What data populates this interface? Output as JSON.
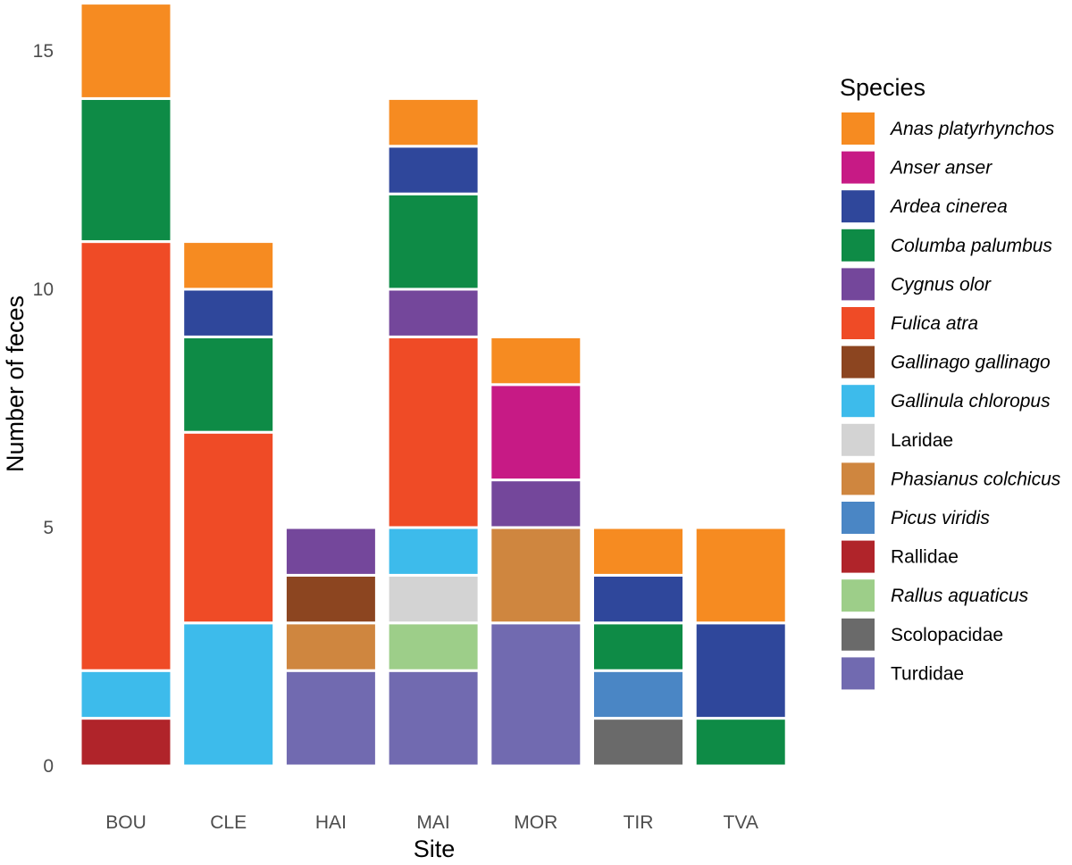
{
  "chart_data": {
    "type": "bar",
    "stacked": true,
    "xlabel": "Site",
    "ylabel": "Number of feces",
    "ylim": [
      0,
      16
    ],
    "yticks": [
      0,
      5,
      10,
      15
    ],
    "grid": false,
    "legend": {
      "title": "Species",
      "placement": "right"
    },
    "categories": [
      "BOU",
      "CLE",
      "HAI",
      "MAI",
      "MOR",
      "TIR",
      "TVA"
    ],
    "series": [
      {
        "name": "Anas platyrhynchos",
        "italic": true,
        "color": "#F68B21",
        "values": [
          2,
          1,
          0,
          1,
          1,
          1,
          2
        ]
      },
      {
        "name": "Anser anser",
        "italic": true,
        "color": "#C71A85",
        "values": [
          0,
          0,
          0,
          0,
          2,
          0,
          0
        ]
      },
      {
        "name": "Ardea cinerea",
        "italic": true,
        "color": "#2F479B",
        "values": [
          0,
          1,
          0,
          1,
          0,
          1,
          2
        ]
      },
      {
        "name": "Columba palumbus",
        "italic": true,
        "color": "#0E8B46",
        "values": [
          3,
          2,
          0,
          2,
          0,
          1,
          1
        ]
      },
      {
        "name": "Cygnus olor",
        "italic": true,
        "color": "#74479B",
        "values": [
          0,
          0,
          1,
          1,
          1,
          0,
          0
        ]
      },
      {
        "name": "Fulica atra",
        "italic": true,
        "color": "#EF4B26",
        "values": [
          9,
          4,
          0,
          4,
          0,
          0,
          0
        ]
      },
      {
        "name": "Gallinago gallinago",
        "italic": true,
        "color": "#8C4520",
        "values": [
          0,
          0,
          1,
          0,
          0,
          0,
          0
        ]
      },
      {
        "name": "Gallinula chloropus",
        "italic": true,
        "color": "#3DBBEB",
        "values": [
          1,
          3,
          0,
          1,
          0,
          0,
          0
        ]
      },
      {
        "name": "Laridae",
        "italic": false,
        "color": "#D3D3D3",
        "values": [
          0,
          0,
          0,
          1,
          0,
          0,
          0
        ]
      },
      {
        "name": "Phasianus colchicus",
        "italic": true,
        "color": "#CF863F",
        "values": [
          0,
          0,
          1,
          0,
          2,
          0,
          0
        ]
      },
      {
        "name": "Picus viridis",
        "italic": true,
        "color": "#4A86C5",
        "values": [
          0,
          0,
          0,
          0,
          0,
          1,
          0
        ]
      },
      {
        "name": "Rallidae",
        "italic": false,
        "color": "#B0242A",
        "values": [
          1,
          0,
          0,
          0,
          0,
          0,
          0
        ]
      },
      {
        "name": "Rallus aquaticus",
        "italic": true,
        "color": "#9DCE89",
        "values": [
          0,
          0,
          0,
          1,
          0,
          0,
          0
        ]
      },
      {
        "name": "Scolopacidae",
        "italic": false,
        "color": "#6A6A6A",
        "values": [
          0,
          0,
          0,
          0,
          0,
          1,
          0
        ]
      },
      {
        "name": "Turdidae",
        "italic": false,
        "color": "#716AB0",
        "values": [
          0,
          0,
          2,
          2,
          3,
          0,
          0
        ]
      }
    ],
    "stack_order_bottom_to_top": {
      "BOU": [
        "Rallidae",
        "Gallinula chloropus",
        "Fulica atra",
        "Columba palumbus",
        "Anas platyrhynchos"
      ],
      "CLE": [
        "Gallinula chloropus",
        "Fulica atra",
        "Columba palumbus",
        "Ardea cinerea",
        "Anas platyrhynchos"
      ],
      "HAI": [
        "Turdidae",
        "Phasianus colchicus",
        "Gallinago gallinago",
        "Cygnus olor"
      ],
      "MAI": [
        "Turdidae",
        "Rallus aquaticus",
        "Laridae",
        "Gallinula chloropus",
        "Fulica atra",
        "Cygnus olor",
        "Columba palumbus",
        "Ardea cinerea",
        "Anas platyrhynchos"
      ],
      "MOR": [
        "Turdidae",
        "Phasianus colchicus",
        "Cygnus olor",
        "Anser anser",
        "Anas platyrhynchos"
      ],
      "TIR": [
        "Scolopacidae",
        "Picus viridis",
        "Columba palumbus",
        "Ardea cinerea",
        "Anas platyrhynchos"
      ],
      "TVA": [
        "Columba palumbus",
        "Ardea cinerea",
        "Anas platyrhynchos"
      ]
    }
  }
}
